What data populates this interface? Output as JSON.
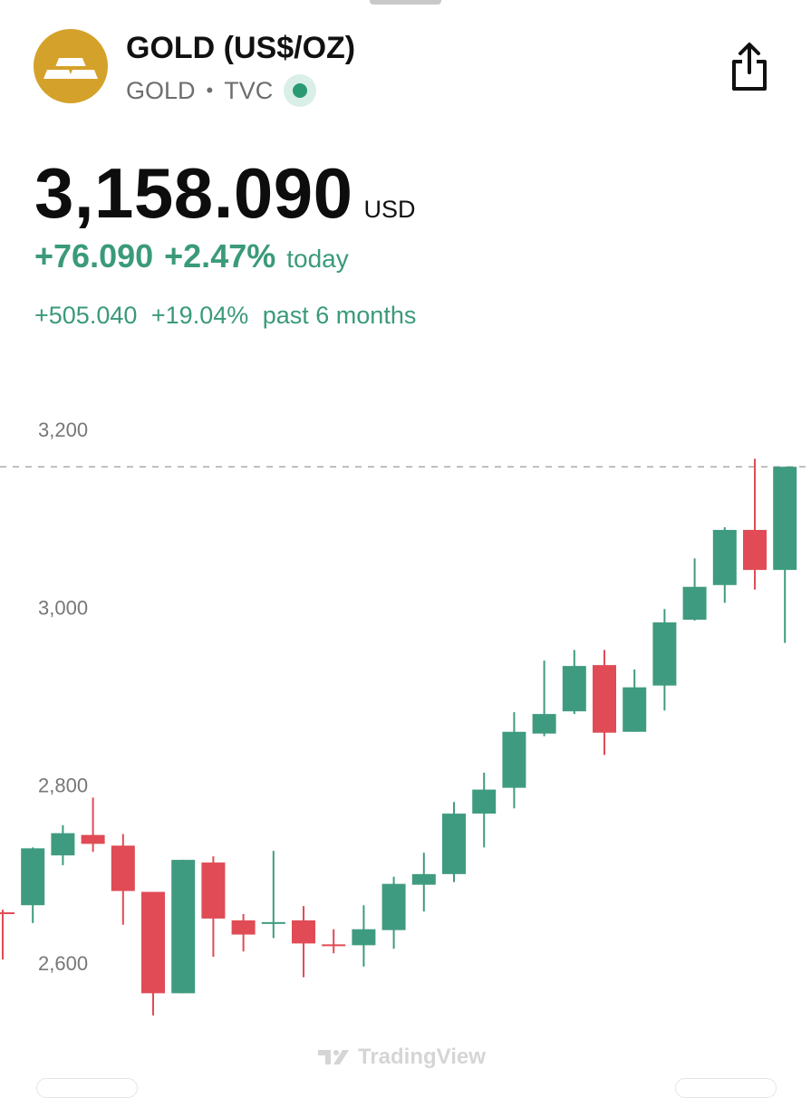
{
  "header": {
    "title": "GOLD (US$/OZ)",
    "symbol": "GOLD",
    "exchange": "TVC",
    "logo_color": "#d4a12a",
    "live_color": "#2b9a72"
  },
  "quote": {
    "price": "3,158.090",
    "currency": "USD",
    "change_today": "+76.090",
    "change_today_pct": "+2.47%",
    "today_label": "today",
    "change_6m": "+505.040",
    "change_6m_pct": "+19.04%",
    "period_label": "past 6 months",
    "up_color": "#3a9a79"
  },
  "watermark": "TradingView",
  "chart_data": {
    "type": "candlestick",
    "y_ticks": [
      3200,
      3000,
      2800,
      2600
    ],
    "y_tick_labels": [
      "3,200",
      "3,000",
      "2,800",
      "2,600"
    ],
    "ylim": [
      2545,
      3205
    ],
    "last_price_line": 3158,
    "grid": false,
    "up_color": "#3f9b80",
    "down_color": "#e04b55",
    "candles": [
      {
        "open": 2657,
        "close": 2655,
        "high": 2660,
        "low": 2604
      },
      {
        "open": 2665,
        "close": 2729,
        "high": 2730,
        "low": 2645
      },
      {
        "open": 2721,
        "close": 2746,
        "high": 2755,
        "low": 2710
      },
      {
        "open": 2744,
        "close": 2734,
        "high": 2786,
        "low": 2725
      },
      {
        "open": 2732,
        "close": 2681,
        "high": 2745,
        "low": 2643
      },
      {
        "open": 2680,
        "close": 2566,
        "high": 2680,
        "low": 2541
      },
      {
        "open": 2566,
        "close": 2716,
        "high": 2716,
        "low": 2566
      },
      {
        "open": 2713,
        "close": 2650,
        "high": 2720,
        "low": 2607
      },
      {
        "open": 2648,
        "close": 2632,
        "high": 2655,
        "low": 2613
      },
      {
        "open": 2645,
        "close": 2646,
        "high": 2726,
        "low": 2628
      },
      {
        "open": 2648,
        "close": 2622,
        "high": 2664,
        "low": 2584
      },
      {
        "open": 2621,
        "close": 2620,
        "high": 2638,
        "low": 2611
      },
      {
        "open": 2620,
        "close": 2638,
        "high": 2665,
        "low": 2596
      },
      {
        "open": 2637,
        "close": 2689,
        "high": 2697,
        "low": 2616
      },
      {
        "open": 2688,
        "close": 2700,
        "high": 2724,
        "low": 2658
      },
      {
        "open": 2700,
        "close": 2768,
        "high": 2781,
        "low": 2691
      },
      {
        "open": 2768,
        "close": 2795,
        "high": 2814,
        "low": 2730
      },
      {
        "open": 2797,
        "close": 2860,
        "high": 2882,
        "low": 2774
      },
      {
        "open": 2858,
        "close": 2880,
        "high": 2940,
        "low": 2855
      },
      {
        "open": 2883,
        "close": 2934,
        "high": 2952,
        "low": 2880
      },
      {
        "open": 2935,
        "close": 2859,
        "high": 2952,
        "low": 2834
      },
      {
        "open": 2860,
        "close": 2910,
        "high": 2930,
        "low": 2860
      },
      {
        "open": 2912,
        "close": 2983,
        "high": 2998,
        "low": 2884
      },
      {
        "open": 2986,
        "close": 3023,
        "high": 3055,
        "low": 2985
      },
      {
        "open": 3025,
        "close": 3087,
        "high": 3090,
        "low": 3005
      },
      {
        "open": 3087,
        "close": 3042,
        "high": 3167,
        "low": 3020
      },
      {
        "open": 3042,
        "close": 3158,
        "high": 3158,
        "low": 2960
      }
    ]
  }
}
